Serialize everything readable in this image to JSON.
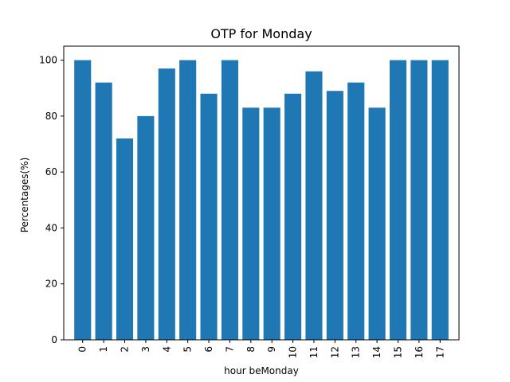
{
  "chart_data": {
    "type": "bar",
    "title": "OTP for Monday",
    "xlabel": "hour beMonday",
    "ylabel": "Percentages(%)",
    "categories": [
      "0",
      "1",
      "2",
      "3",
      "4",
      "5",
      "6",
      "7",
      "8",
      "9",
      "10",
      "11",
      "12",
      "13",
      "14",
      "15",
      "16",
      "17"
    ],
    "values": [
      100,
      92,
      72,
      80,
      97,
      100,
      88,
      100,
      83,
      83,
      88,
      96,
      89,
      92,
      83,
      100,
      100,
      100
    ],
    "ylim": [
      0,
      105
    ],
    "yticks": [
      0,
      20,
      40,
      60,
      80,
      100
    ],
    "bar_color": "#1f77b4",
    "grid": false,
    "x_tick_rotation": "vertical"
  }
}
